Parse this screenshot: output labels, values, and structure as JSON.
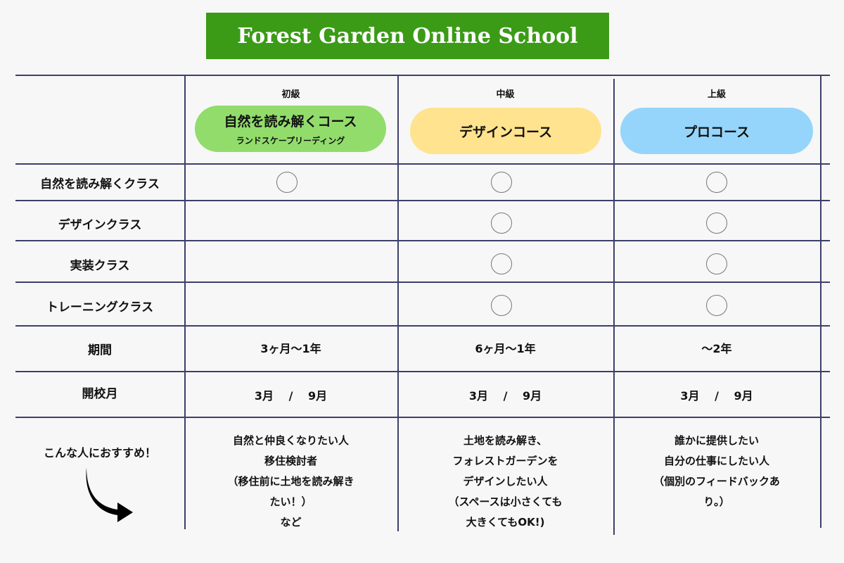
{
  "title": "Forest Garden Online School",
  "courses": [
    {
      "level": "初級",
      "name": "自然を読み解くコース",
      "sub": "ランドスケープリーディング",
      "color": "#92dc6c"
    },
    {
      "level": "中級",
      "name": "デザインコース",
      "sub": "",
      "color": "#ffe38e"
    },
    {
      "level": "上級",
      "name": "プロコース",
      "sub": "",
      "color": "#95d5fb"
    }
  ],
  "rows": [
    {
      "label": "自然を読み解くクラス",
      "included": [
        true,
        true,
        true
      ]
    },
    {
      "label": "デザインクラス",
      "included": [
        false,
        true,
        true
      ]
    },
    {
      "label": "実装クラス",
      "included": [
        false,
        true,
        true
      ]
    },
    {
      "label": "トレーニングクラス",
      "included": [
        false,
        true,
        true
      ]
    }
  ],
  "period": {
    "label": "期間",
    "values": [
      "3ヶ月〜1年",
      "6ヶ月〜1年",
      "〜2年"
    ]
  },
  "start": {
    "label": "開校月",
    "values": [
      "3月　 /　 9月",
      "3月　 /　 9月",
      "3月　 /　 9月"
    ]
  },
  "recommend": {
    "label": "こんな人におすすめ！",
    "values": [
      [
        "自然と仲良くなりたい人",
        "移住検討者",
        "（移住前に土地を読み解き",
        "たい！）",
        "など"
      ],
      [
        "土地を読み解き、",
        "フォレストガーデンを",
        "デザインしたい人",
        "（スペースは小さくても",
        "大きくてもOK!)"
      ],
      [
        "誰かに提供したい",
        "自分の仕事にしたい人",
        "（個別のフィードバックあ",
        "り。）"
      ]
    ]
  },
  "icons": {
    "included": "circle-icon",
    "arrow": "curved-arrow-icon"
  }
}
